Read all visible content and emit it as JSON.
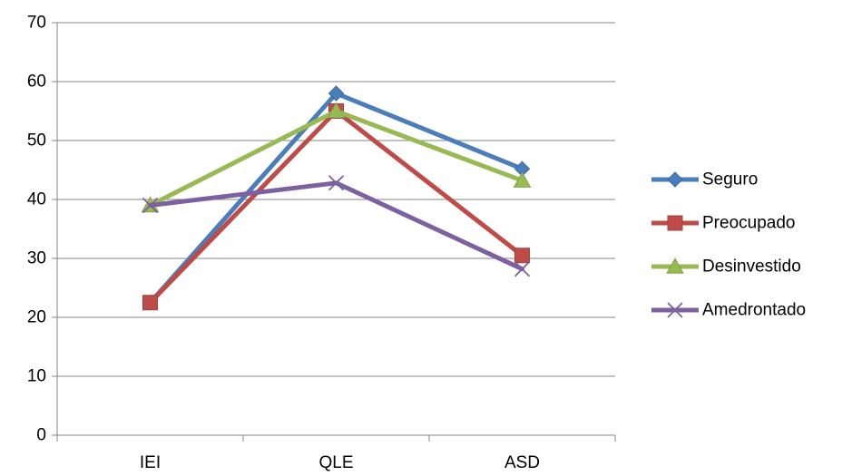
{
  "chart_data": {
    "type": "line",
    "categories": [
      "IEI",
      "QLE",
      "ASD"
    ],
    "series": [
      {
        "name": "Seguro",
        "values": [
          22.5,
          58,
          45.2
        ],
        "color": "#4a7ebb",
        "marker": "diamond"
      },
      {
        "name": "Preocupado",
        "values": [
          22.5,
          55,
          30.5
        ],
        "color": "#be4b48",
        "marker": "square"
      },
      {
        "name": "Desinvestido",
        "values": [
          39,
          55,
          43.2
        ],
        "color": "#98b954",
        "marker": "triangle"
      },
      {
        "name": "Amedrontado",
        "values": [
          39,
          42.8,
          28.2
        ],
        "color": "#7d60a0",
        "marker": "x"
      }
    ],
    "title": "",
    "xlabel": "",
    "ylabel": "",
    "ylim": [
      0,
      70
    ],
    "yticks": [
      0,
      10,
      20,
      30,
      40,
      50,
      60,
      70
    ],
    "grid": true,
    "legend": "right"
  }
}
